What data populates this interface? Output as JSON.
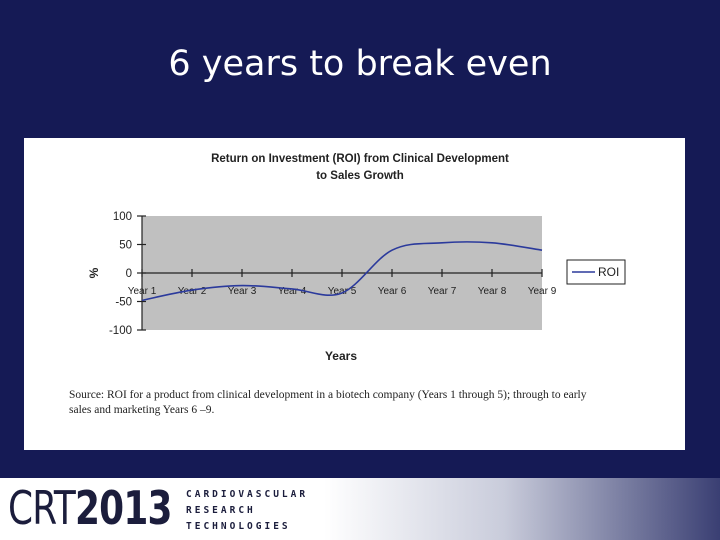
{
  "slide": {
    "title": "6 years to break even"
  },
  "chart_data": {
    "type": "line",
    "title": [
      "Return on Investment (ROI) from Clinical Development",
      "to Sales Growth"
    ],
    "xlabel": "Years",
    "ylabel": "%",
    "categories": [
      "Year 1",
      "Year 2",
      "Year 3",
      "Year 4",
      "Year 5",
      "Year 6",
      "Year 7",
      "Year 8",
      "Year 9"
    ],
    "ylim": [
      -100,
      100
    ],
    "yticks": [
      100,
      50,
      0,
      -50,
      -100
    ],
    "series": [
      {
        "name": "ROI",
        "color": "#2b3a9c",
        "values": [
          -48,
          -30,
          -22,
          -28,
          -35,
          40,
          53,
          53,
          40
        ]
      }
    ],
    "plot_background": "#c0c0c0",
    "legend": "right",
    "grid": false
  },
  "source_note": {
    "line1": "Source: ROI for a product from clinical development in a biotech company (Years 1 through 5);  through to early",
    "line2": "sales and marketing Years 6 –9."
  },
  "footer": {
    "logo_prefix": "CRT",
    "logo_year": "2013",
    "lines": [
      "CARDIOVASCULAR",
      "RESEARCH",
      "TECHNOLOGIES"
    ]
  }
}
